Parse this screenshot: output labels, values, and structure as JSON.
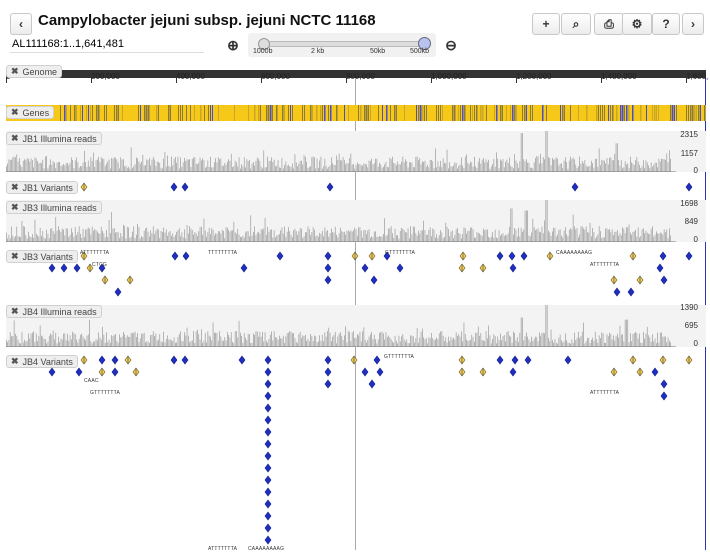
{
  "header": {
    "title": "Campylobacter jejuni subsp. jejuni NCTC 11168",
    "back_icon": "‹",
    "forward_icon": "›",
    "buttons": [
      {
        "name": "add-track-button",
        "icon": "plus-icon",
        "glyph": "+"
      },
      {
        "name": "search-button",
        "icon": "binoculars-icon",
        "glyph": "⌕"
      },
      {
        "name": "print-button",
        "icon": "print-icon",
        "glyph": "⎙"
      },
      {
        "name": "settings-button",
        "icon": "gears-icon",
        "glyph": "⚙"
      },
      {
        "name": "help-button",
        "icon": "help-icon",
        "glyph": "?"
      }
    ]
  },
  "location": {
    "value": "AL111168:1..1,641,481"
  },
  "zoom": {
    "zoom_in_icon": "⊕",
    "zoom_out_icon": "⊖",
    "labels": [
      "1000b",
      "2 kb",
      "50kb",
      "500kb"
    ],
    "level_fraction": 1.0
  },
  "ruler": {
    "ticks": [
      "0",
      "200,000",
      "400,000",
      "600,000",
      "800,000",
      "1,000,000",
      "1,200,000",
      "1,400,000",
      "1,600,"
    ]
  },
  "tracks": {
    "genome": "Genome",
    "genes": "Genes",
    "jb1_reads": {
      "label": "JB1 Illumina reads",
      "ymax": "2315",
      "ymid": "1157",
      "ymin": "0"
    },
    "jb1_variants": "JB1 Variants",
    "jb3_reads": {
      "label": "JB3 Illumina reads",
      "ymax": "1698",
      "ymid": "849",
      "ymin": "0"
    },
    "jb3_variants": "JB3 Variants",
    "jb4_reads": {
      "label": "JB4 Illumina reads",
      "ymax": "1390",
      "ymid": "695",
      "ymin": "0"
    },
    "jb4_variants": "JB4 Variants"
  },
  "variant_labels": {
    "jb3": [
      "ATTTTTTTA",
      "CTCG",
      "TTTTTTTTA",
      "GTTTTTTTA",
      "CAAAAAAAAG",
      "ATTTTTTTA"
    ],
    "jb4": [
      "CAAC",
      "GTTTTTTTA",
      "GTTTTTTTA",
      "ATTTTTTTA",
      "ATTTTTTTA",
      "CAAAAAAAAG"
    ]
  },
  "colors": {
    "variant_blue": "#1f2fbf",
    "variant_yellow": "#f3cc57",
    "gene_yellow": "#f5c81a",
    "gene_blue": "#4a4fc8",
    "coverage": "#9a9a9a"
  }
}
